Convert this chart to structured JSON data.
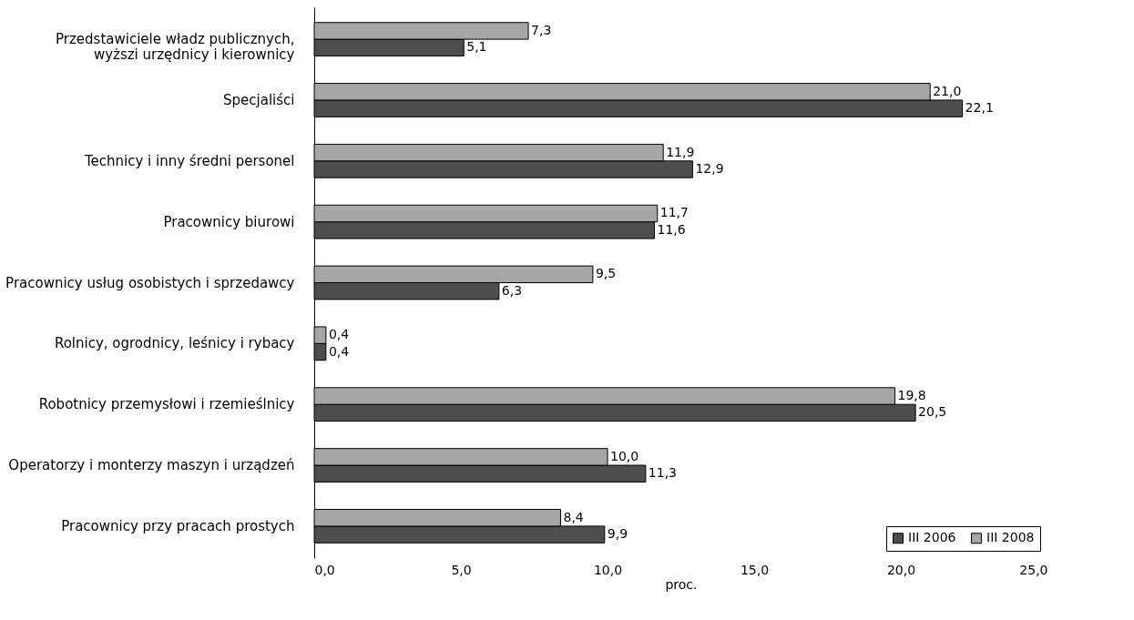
{
  "chart_data": {
    "type": "bar",
    "orientation": "horizontal",
    "xlabel": "proc.",
    "categories": [
      "Przedstawiciele władz publicznych, wyższi urzędnicy i kierownicy",
      "Specjaliści",
      "Technicy i inny średni personel",
      "Pracownicy biurowi",
      "Pracownicy usług osobistych i sprzedawcy",
      "Rolnicy, ogrodnicy, leśnicy i rybacy",
      "Robotnicy przemysłowi i rzemieślnicy",
      "Operatorzy i monterzy maszyn i urządzeń",
      "Pracownicy przy pracach prostych"
    ],
    "series": [
      {
        "name": "III 2006",
        "color": "#4d4d4d",
        "values": [
          5.1,
          22.1,
          12.9,
          11.6,
          6.3,
          0.4,
          20.5,
          11.3,
          9.9
        ],
        "value_labels": [
          "5,1",
          "22,1",
          "12,9",
          "11,6",
          "6,3",
          "0,4",
          "20,5",
          "11,3",
          "9,9"
        ]
      },
      {
        "name": "III 2008",
        "color": "#a6a6a6",
        "values": [
          7.3,
          21.0,
          11.9,
          11.7,
          9.5,
          0.4,
          19.8,
          10.0,
          8.4
        ],
        "value_labels": [
          "7,3",
          "21,0",
          "11,9",
          "11,7",
          "9,5",
          "0,4",
          "19,8",
          "10,0",
          "8,4"
        ]
      }
    ],
    "xlim": [
      0,
      25
    ],
    "xticks": [
      {
        "value": 0,
        "label": "0,0"
      },
      {
        "value": 5,
        "label": "5,0"
      },
      {
        "value": 10,
        "label": "10,0"
      },
      {
        "value": 15,
        "label": "15,0"
      },
      {
        "value": 20,
        "label": "20,0"
      },
      {
        "value": 25,
        "label": "25,0"
      }
    ],
    "grid": false,
    "legend": "bottom right"
  }
}
